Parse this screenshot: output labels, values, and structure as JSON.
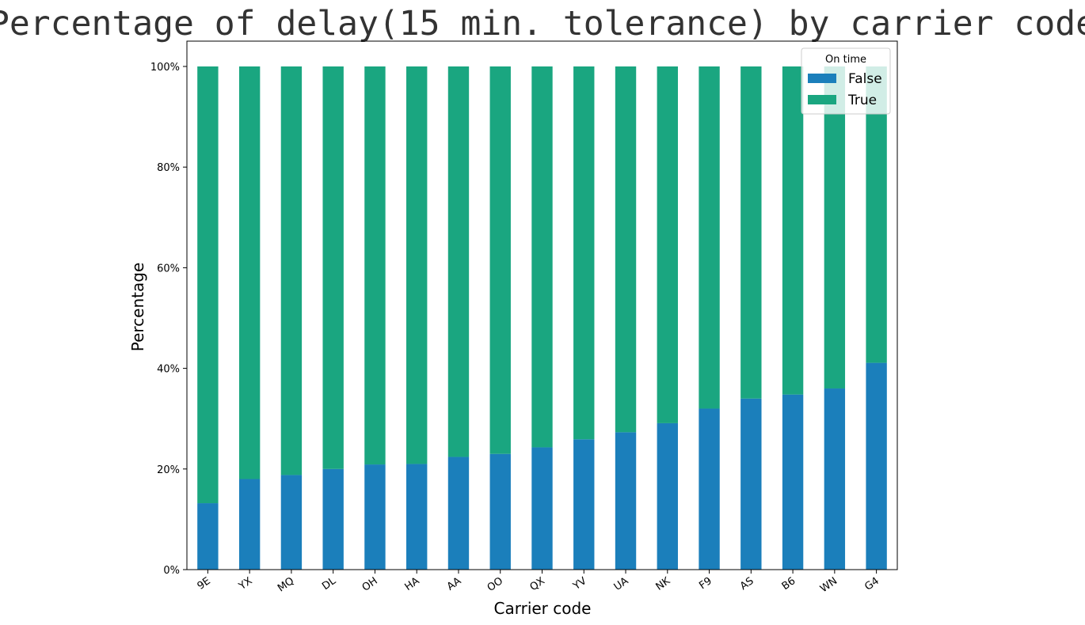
{
  "chart_data": {
    "type": "bar",
    "stacked": true,
    "title": "Percentage of delay(15 min. tolerance) by carrier code",
    "xlabel": "Carrier code",
    "ylabel": "Percentage",
    "ylim": [
      0,
      100
    ],
    "yticks": [
      "0%",
      "20%",
      "40%",
      "60%",
      "80%",
      "100%"
    ],
    "categories": [
      "9E",
      "YX",
      "MQ",
      "DL",
      "OH",
      "HA",
      "AA",
      "OO",
      "QX",
      "YV",
      "UA",
      "NK",
      "F9",
      "AS",
      "B6",
      "WN",
      "G4"
    ],
    "series": [
      {
        "name": "False",
        "color": "#1b7fbb",
        "values": [
          13.2,
          18.0,
          18.8,
          20.0,
          20.9,
          21.0,
          22.4,
          23.0,
          24.3,
          25.9,
          27.3,
          29.1,
          32.0,
          34.0,
          34.8,
          36.0,
          41.1
        ]
      },
      {
        "name": "True",
        "color": "#1aa680",
        "values": [
          86.8,
          82.0,
          81.2,
          80.0,
          79.1,
          79.0,
          77.6,
          77.0,
          75.7,
          74.1,
          72.7,
          70.9,
          68.0,
          66.0,
          65.2,
          64.0,
          58.9
        ]
      }
    ],
    "legend": {
      "title": "On time",
      "placement": "top-right"
    },
    "grid": false
  }
}
